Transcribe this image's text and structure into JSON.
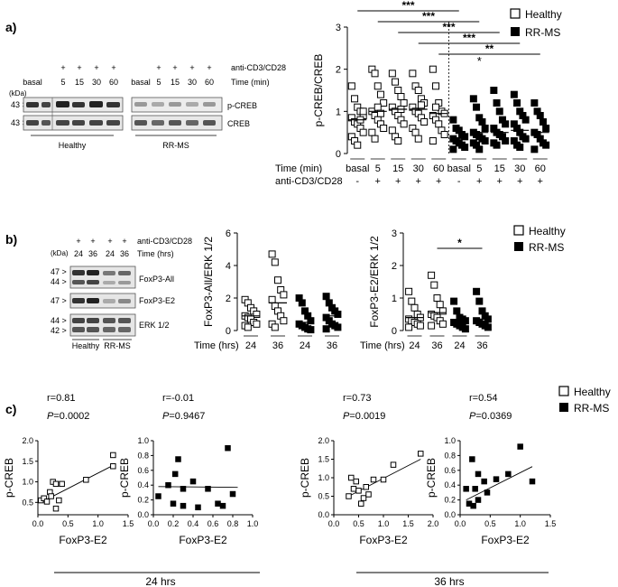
{
  "panel_labels": {
    "a": "a)",
    "b": "b)",
    "c": "c)"
  },
  "legend": {
    "healthy": "Healthy",
    "rrms": "RR-MS"
  },
  "blot_a": {
    "kda": "(kDa)",
    "markers": [
      "43 >",
      "43 >"
    ],
    "pluses": [
      "+",
      "+",
      "+",
      "+"
    ],
    "lane_labels": [
      "basal",
      "5",
      "15",
      "30",
      "60"
    ],
    "lane_labels_right": [
      "basal",
      "5",
      "15",
      "30",
      "60"
    ],
    "stim_label": "anti-CD3/CD28",
    "time_label": "Time (min)",
    "bands": [
      "p-CREB",
      "CREB"
    ],
    "groups": [
      "Healthy",
      "RR-MS"
    ]
  },
  "blot_b": {
    "kda": "(kDa)",
    "pluses": [
      "+",
      "+",
      "+",
      "+"
    ],
    "stim_label": "anti-CD3/CD28",
    "time_label": "Time (hrs)",
    "lanes": [
      "24",
      "36",
      "24",
      "36"
    ],
    "markers": [
      "47 >",
      "44 >",
      "47 >",
      "44 >",
      "42 >"
    ],
    "bands": [
      "FoxP3-All",
      "FoxP3-E2",
      "ERK 1/2"
    ],
    "groups": [
      "Healthy",
      "RR-MS"
    ]
  },
  "chart_data": [
    {
      "id": "a-pcreb",
      "type": "scatter",
      "ylabel": "p-CREB/CREB",
      "ylim": [
        0,
        3
      ],
      "yticks": [
        "0",
        "1",
        "2",
        "3"
      ],
      "x_title_1": "Time (min)",
      "x_title_2": "anti-CD3/CD28",
      "categories": [
        "basal",
        "5",
        "15",
        "30",
        "60",
        "basal",
        "5",
        "15",
        "30",
        "60"
      ],
      "stim_row": [
        "-",
        "+",
        "+",
        "+",
        "+",
        "-",
        "+",
        "+",
        "+",
        "+"
      ],
      "means": [
        0.8,
        1.0,
        1.05,
        1.05,
        0.95,
        0.35,
        0.5,
        0.5,
        0.55,
        0.5
      ],
      "significance": [
        {
          "label": "***",
          "from": 0,
          "to": 5
        },
        {
          "label": "***",
          "from": 1,
          "to": 6
        },
        {
          "label": "***",
          "from": 2,
          "to": 7
        },
        {
          "label": "***",
          "from": 3,
          "to": 8
        },
        {
          "label": "**",
          "from": 4,
          "to": 9
        }
      ],
      "star_annotations": [
        {
          "label": "*",
          "at": 6
        }
      ],
      "series": [
        {
          "name": "Healthy",
          "groups": [
            [
              1.6,
              1.3,
              1.1,
              1.0,
              0.9,
              0.85,
              0.75,
              0.7,
              0.6,
              0.5,
              0.4,
              0.3,
              0.2,
              0.8,
              1.0
            ],
            [
              2.0,
              1.9,
              1.6,
              1.4,
              1.2,
              1.0,
              0.9,
              0.8,
              0.7,
              0.6,
              0.5,
              0.35,
              1.1,
              0.95
            ],
            [
              1.9,
              1.7,
              1.5,
              1.35,
              1.2,
              1.1,
              1.0,
              0.9,
              0.8,
              0.7,
              0.55,
              0.4,
              0.3,
              1.05
            ],
            [
              1.9,
              1.6,
              1.5,
              1.3,
              1.2,
              1.1,
              1.0,
              0.95,
              0.85,
              0.75,
              0.6,
              0.5,
              0.35,
              1.15
            ],
            [
              2.0,
              1.6,
              1.2,
              1.0,
              0.95,
              0.9,
              0.8,
              0.7,
              0.55,
              0.45,
              0.3,
              1.1
            ]
          ]
        },
        {
          "name": "RR-MS",
          "groups": [
            [
              0.8,
              0.6,
              0.55,
              0.45,
              0.4,
              0.35,
              0.3,
              0.25,
              0.2,
              0.15,
              0.1
            ],
            [
              1.3,
              1.1,
              0.85,
              0.75,
              0.6,
              0.5,
              0.45,
              0.4,
              0.35,
              0.3,
              0.25,
              0.2,
              0.1
            ],
            [
              1.5,
              1.2,
              1.0,
              0.8,
              0.7,
              0.6,
              0.5,
              0.45,
              0.4,
              0.3,
              0.25,
              0.2
            ],
            [
              1.4,
              1.2,
              1.0,
              0.9,
              0.8,
              0.7,
              0.6,
              0.5,
              0.4,
              0.35,
              0.3,
              0.2,
              0.15
            ],
            [
              1.2,
              1.0,
              0.9,
              0.75,
              0.6,
              0.5,
              0.45,
              0.35,
              0.25,
              0.2,
              0.1
            ]
          ]
        }
      ]
    },
    {
      "id": "b-foxp3-all",
      "type": "scatter",
      "ylabel": "FoxP3-All/ERK 1/2",
      "ylim": [
        0,
        6
      ],
      "yticks": [
        "0",
        "2",
        "4",
        "6"
      ],
      "x_title_1": "Time (hrs)",
      "categories": [
        "24",
        "36",
        "24",
        "36"
      ],
      "means": [
        0.9,
        1.7,
        0.5,
        0.9
      ],
      "series": [
        {
          "name": "Healthy",
          "groups": [
            [
              1.9,
              1.7,
              1.4,
              1.2,
              1.0,
              0.9,
              0.8,
              0.7,
              0.5,
              0.4,
              0.3,
              0.2
            ],
            [
              4.7,
              4.2,
              3.1,
              2.5,
              2.2,
              1.9,
              1.5,
              1.2,
              0.9,
              0.6,
              0.4,
              0.2
            ]
          ]
        },
        {
          "name": "RR-MS",
          "groups": [
            [
              2.0,
              1.7,
              1.2,
              0.9,
              0.6,
              0.4,
              0.3,
              0.2,
              0.1,
              0.05
            ],
            [
              2.1,
              1.7,
              1.4,
              1.2,
              1.0,
              0.8,
              0.6,
              0.4,
              0.3,
              0.2,
              0.1
            ]
          ]
        }
      ]
    },
    {
      "id": "b-foxp3-e2",
      "type": "scatter",
      "ylabel": "FoxP3-E2/ERK 1/2",
      "ylim": [
        0,
        3
      ],
      "yticks": [
        "0",
        "1",
        "2",
        "3"
      ],
      "x_title_1": "Time (hrs)",
      "categories": [
        "24",
        "36",
        "24",
        "36"
      ],
      "means": [
        0.4,
        0.55,
        0.3,
        0.35
      ],
      "significance": [
        {
          "label": "*",
          "from": 1,
          "to": 3
        }
      ],
      "series": [
        {
          "name": "Healthy",
          "groups": [
            [
              1.2,
              0.9,
              0.7,
              0.5,
              0.4,
              0.35,
              0.3,
              0.25,
              0.2,
              0.15,
              0.1
            ],
            [
              1.7,
              1.4,
              1.0,
              0.8,
              0.6,
              0.5,
              0.45,
              0.4,
              0.3,
              0.2,
              0.15
            ]
          ]
        },
        {
          "name": "RR-MS",
          "groups": [
            [
              0.9,
              0.6,
              0.4,
              0.35,
              0.3,
              0.25,
              0.2,
              0.15,
              0.1,
              0.05
            ],
            [
              1.2,
              0.9,
              0.6,
              0.45,
              0.35,
              0.3,
              0.25,
              0.2,
              0.15,
              0.1
            ]
          ]
        }
      ]
    },
    {
      "id": "c1",
      "type": "scatter",
      "series_name": "Healthy",
      "stat_r": "r=0.81",
      "stat_p_label": "P",
      "stat_p_value": "=0.0002",
      "xlabel": "FoxP3-E2",
      "ylabel": "p-CREB",
      "xlim": [
        0,
        1.5
      ],
      "ylim": [
        0.2,
        2.0
      ],
      "xticks": [
        "0.0",
        "0.5",
        "1.0",
        "1.5"
      ],
      "yticks": [
        "0.5",
        "1.0",
        "1.5",
        "2.0"
      ],
      "points": [
        [
          0.05,
          0.55
        ],
        [
          0.1,
          0.6
        ],
        [
          0.15,
          0.52
        ],
        [
          0.2,
          0.75
        ],
        [
          0.22,
          0.65
        ],
        [
          0.25,
          1.0
        ],
        [
          0.3,
          0.35
        ],
        [
          0.3,
          0.95
        ],
        [
          0.35,
          0.55
        ],
        [
          0.4,
          0.95
        ],
        [
          0.8,
          1.05
        ],
        [
          1.25,
          1.38
        ],
        [
          1.25,
          1.65
        ]
      ],
      "fit_line": [
        [
          0.05,
          0.5
        ],
        [
          1.25,
          1.4
        ]
      ]
    },
    {
      "id": "c2",
      "type": "scatter",
      "series_name": "RR-MS",
      "stat_r": "r=-0.01",
      "stat_p_label": "P",
      "stat_p_value": "=0.9467",
      "xlabel": "FoxP3-E2",
      "ylabel": "p-CREB",
      "xlim": [
        0,
        1.0
      ],
      "ylim": [
        0,
        1.0
      ],
      "xticks": [
        "0.0",
        "0.2",
        "0.4",
        "0.6",
        "0.8",
        "1.0"
      ],
      "yticks": [
        "0.0",
        "0.2",
        "0.4",
        "0.6",
        "0.8",
        "1.0"
      ],
      "points": [
        [
          0.05,
          0.25
        ],
        [
          0.15,
          0.4
        ],
        [
          0.2,
          0.15
        ],
        [
          0.25,
          0.75
        ],
        [
          0.22,
          0.55
        ],
        [
          0.3,
          0.35
        ],
        [
          0.3,
          0.12
        ],
        [
          0.4,
          0.45
        ],
        [
          0.45,
          0.1
        ],
        [
          0.55,
          0.35
        ],
        [
          0.65,
          0.15
        ],
        [
          0.7,
          0.12
        ],
        [
          0.75,
          0.9
        ],
        [
          0.8,
          0.28
        ]
      ],
      "fit_line": [
        [
          0.05,
          0.38
        ],
        [
          0.85,
          0.37
        ]
      ]
    },
    {
      "id": "c3",
      "type": "scatter",
      "series_name": "Healthy",
      "stat_r": "r=0.73",
      "stat_p_label": "P",
      "stat_p_value": "=0.0019",
      "xlabel": "FoxP3-E2",
      "ylabel": "p-CREB",
      "xlim": [
        0,
        2.0
      ],
      "ylim": [
        0,
        2.0
      ],
      "xticks": [
        "0.0",
        "0.5",
        "1.0",
        "1.5",
        "2.0"
      ],
      "yticks": [
        "0.0",
        "0.5",
        "1.0",
        "1.5",
        "2.0"
      ],
      "points": [
        [
          0.3,
          0.5
        ],
        [
          0.35,
          1.0
        ],
        [
          0.4,
          0.7
        ],
        [
          0.45,
          0.9
        ],
        [
          0.5,
          0.65
        ],
        [
          0.55,
          0.3
        ],
        [
          0.6,
          0.45
        ],
        [
          0.65,
          0.75
        ],
        [
          0.7,
          0.55
        ],
        [
          0.8,
          0.95
        ],
        [
          1.0,
          0.95
        ],
        [
          1.2,
          1.35
        ],
        [
          1.75,
          1.65
        ]
      ],
      "fit_line": [
        [
          0.3,
          0.5
        ],
        [
          1.75,
          1.5
        ]
      ]
    },
    {
      "id": "c4",
      "type": "scatter",
      "series_name": "RR-MS",
      "stat_r": "r=0.54",
      "stat_p_label": "P",
      "stat_p_value": "=0.0369",
      "xlabel": "FoxP3-E2",
      "ylabel": "p-CREB",
      "xlim": [
        0,
        1.5
      ],
      "ylim": [
        0,
        1.0
      ],
      "xticks": [
        "0.0",
        "0.5",
        "1.0",
        "1.5"
      ],
      "yticks": [
        "0.0",
        "0.2",
        "0.4",
        "0.6",
        "0.8",
        "1.0"
      ],
      "points": [
        [
          0.1,
          0.35
        ],
        [
          0.15,
          0.15
        ],
        [
          0.2,
          0.75
        ],
        [
          0.22,
          0.12
        ],
        [
          0.25,
          0.35
        ],
        [
          0.3,
          0.55
        ],
        [
          0.3,
          0.2
        ],
        [
          0.4,
          0.45
        ],
        [
          0.45,
          0.3
        ],
        [
          0.6,
          0.48
        ],
        [
          0.8,
          0.55
        ],
        [
          1.0,
          0.92
        ],
        [
          1.2,
          0.45
        ]
      ],
      "fit_line": [
        [
          0.1,
          0.2
        ],
        [
          1.2,
          0.65
        ]
      ]
    }
  ],
  "c_group_labels": [
    "24 hrs",
    "36 hrs"
  ]
}
